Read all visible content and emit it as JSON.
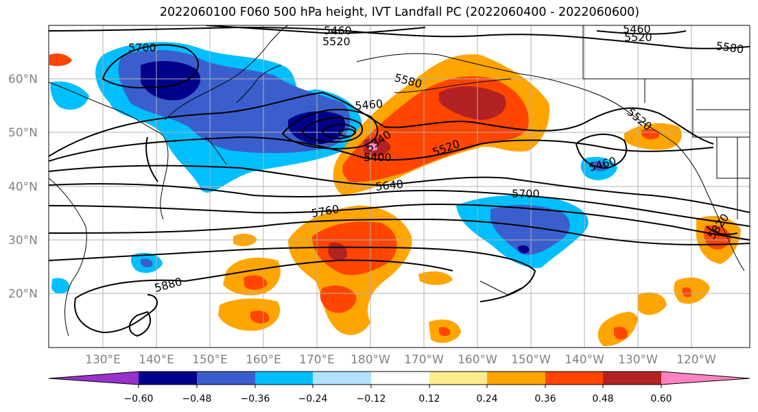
{
  "title": "2022060100 F060 500 hPa height, IVT Landfall PC (2022060400 - 2022060600)",
  "map": {
    "lat_labels": [
      "60°N",
      "50°N",
      "40°N",
      "30°N",
      "20°N"
    ],
    "lon_labels": [
      "130°E",
      "140°E",
      "150°E",
      "160°E",
      "170°E",
      "180°W",
      "170°W",
      "160°W",
      "150°W",
      "140°W",
      "130°W",
      "120°W"
    ],
    "extent": {
      "lon_min": 120,
      "lon_max": 251,
      "lat_min": 10,
      "lat_max": 70
    },
    "gridlines": true,
    "contour_labels": [
      "5460",
      "5520",
      "5700",
      "5580",
      "5460",
      "5460",
      "5340",
      "5400",
      "5520",
      "5640",
      "5700",
      "5760",
      "5880",
      "5820",
      "5520",
      "5580",
      "5520",
      "5460"
    ],
    "contour_levels": [
      5340,
      5400,
      5460,
      5520,
      5580,
      5640,
      5700,
      5760,
      5820,
      5880
    ]
  },
  "colorbar": {
    "ticks": [
      "−0.60",
      "−0.48",
      "−0.36",
      "−0.24",
      "−0.12",
      "0.12",
      "0.24",
      "0.36",
      "0.48",
      "0.60"
    ],
    "colors": [
      "#9932cc",
      "#00008b",
      "#3a5fcd",
      "#00bfff",
      "#b0e2ff",
      "#ffffff",
      "#ffec8b",
      "#ffa500",
      "#ff4500",
      "#b22222",
      "#ff83c0"
    ]
  }
}
